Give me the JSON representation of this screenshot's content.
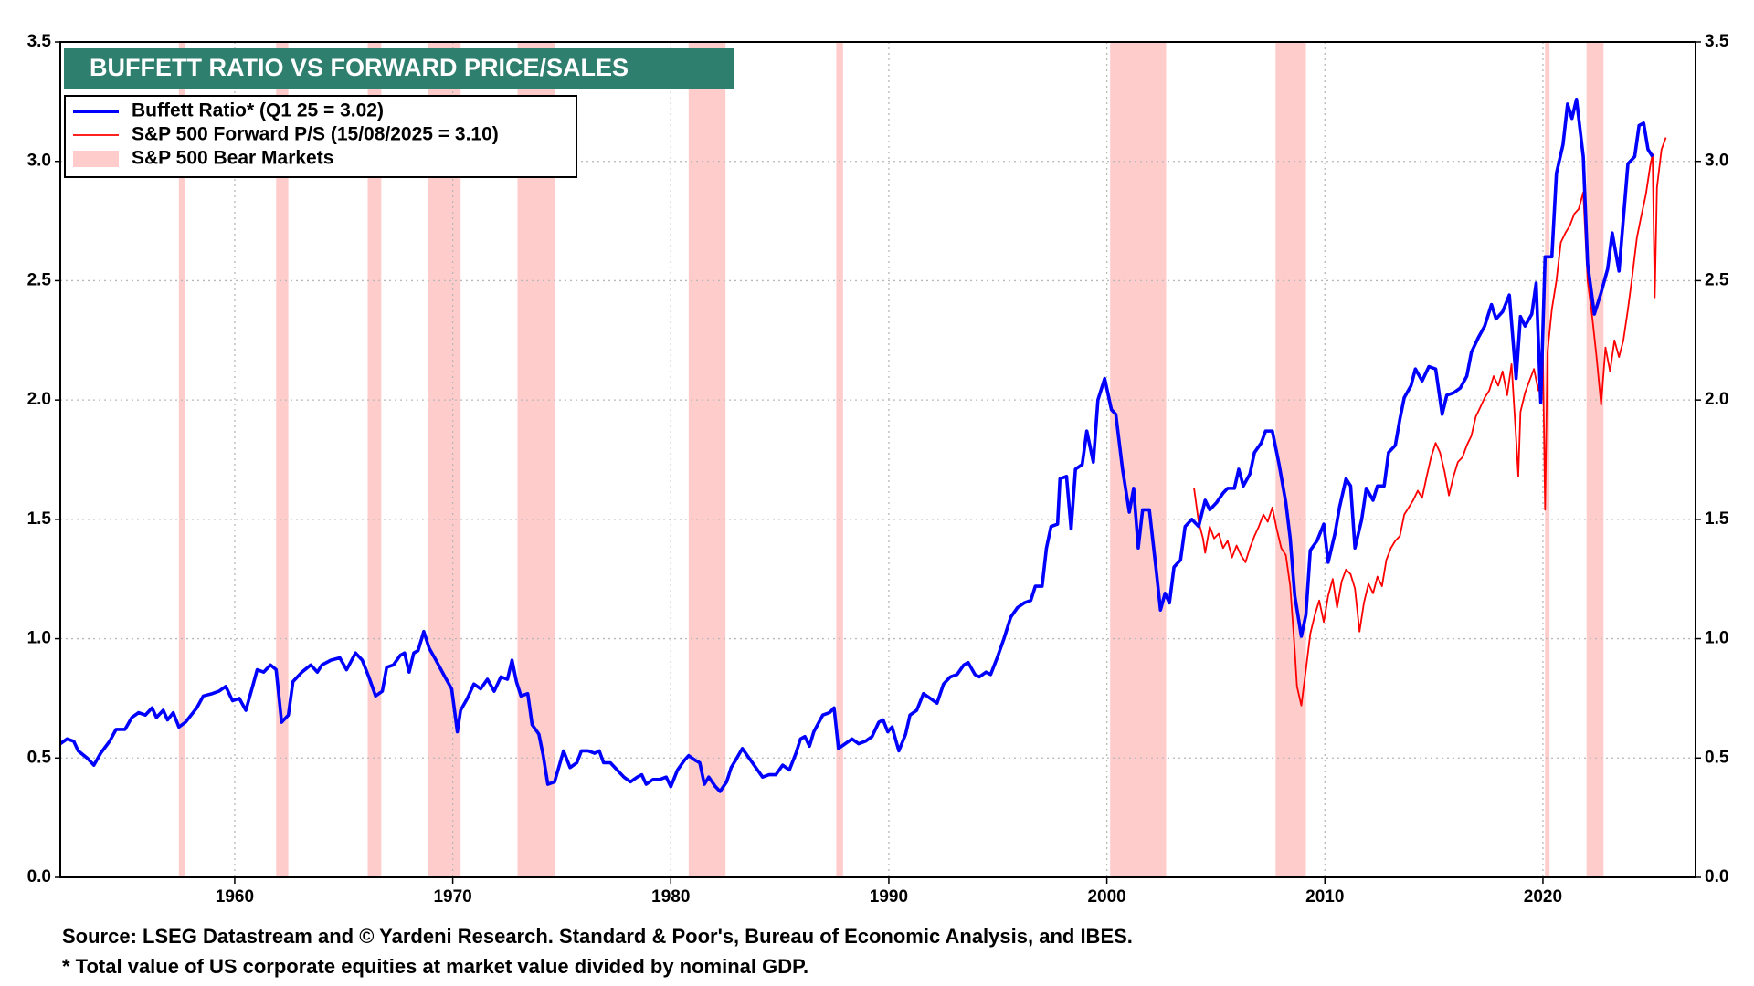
{
  "chart_data": {
    "type": "line",
    "title": "BUFFETT RATIO VS FORWARD PRICE/SALES",
    "source": "Source: LSEG Datastream and © Yardeni Research. Standard & Poor's, Bureau of Economic Analysis, and IBES.",
    "note": "* Total value of US corporate equities at market value divided by nominal GDP.",
    "legend": "upper left",
    "grid": true,
    "xlim": [
      1952,
      2027
    ],
    "xticks": [
      1960,
      1970,
      1980,
      1990,
      2000,
      2010,
      2020
    ],
    "ylim": [
      0,
      3.5
    ],
    "yticks": [
      {
        "value": 0,
        "label": "0.0"
      },
      {
        "value": 0.5,
        "label": "0.5"
      },
      {
        "value": 1,
        "label": "1.0"
      },
      {
        "value": 1.5,
        "label": "1.5"
      },
      {
        "value": 2,
        "label": "2.0"
      },
      {
        "value": 2.5,
        "label": "2.5"
      },
      {
        "value": 3,
        "label": "3.0"
      },
      {
        "value": 3.5,
        "label": "3.5"
      }
    ],
    "y2lim": [
      0,
      3.5
    ],
    "y2ticks": [
      {
        "value": 0,
        "label": "0.0"
      },
      {
        "value": 0.5,
        "label": "0.5"
      },
      {
        "value": 1,
        "label": "1.0"
      },
      {
        "value": 1.5,
        "label": "1.5"
      },
      {
        "value": 2,
        "label": "2.0"
      },
      {
        "value": 2.5,
        "label": "2.5"
      },
      {
        "value": 3,
        "label": "3.0"
      },
      {
        "value": 3.5,
        "label": "3.5"
      }
    ],
    "bear_markets": {
      "name": "S&P 500 Bear Markets",
      "color": "#ffcccc",
      "ranges": [
        [
          1957.44,
          1957.74
        ],
        [
          1961.9,
          1962.46
        ],
        [
          1966.1,
          1966.72
        ],
        [
          1968.87,
          1970.36
        ],
        [
          1972.97,
          1974.67
        ],
        [
          1980.82,
          1982.51
        ],
        [
          1987.59,
          1987.9
        ],
        [
          2000.15,
          2002.72
        ],
        [
          2007.74,
          2009.13
        ],
        [
          2020.1,
          2020.3
        ],
        [
          2022.0,
          2022.78
        ]
      ]
    },
    "series": [
      {
        "name": "Buffett Ratio* (Q1 25 = 3.02)",
        "color": "#0000ff",
        "x": [
          1952.0,
          1952.31,
          1952.62,
          1952.82,
          1953.23,
          1953.54,
          1953.85,
          1954.26,
          1954.56,
          1954.97,
          1955.28,
          1955.59,
          1955.9,
          1956.21,
          1956.41,
          1956.72,
          1956.92,
          1957.18,
          1957.44,
          1957.74,
          1958.26,
          1958.56,
          1958.97,
          1959.28,
          1959.59,
          1959.9,
          1960.21,
          1960.51,
          1960.82,
          1961.03,
          1961.33,
          1961.64,
          1961.9,
          1962.15,
          1962.46,
          1962.67,
          1963.08,
          1963.49,
          1963.79,
          1964.0,
          1964.41,
          1964.82,
          1965.13,
          1965.54,
          1965.85,
          1966.15,
          1966.46,
          1966.77,
          1966.97,
          1967.28,
          1967.59,
          1967.79,
          1968.0,
          1968.21,
          1968.41,
          1968.67,
          1968.92,
          1969.23,
          1969.64,
          1969.95,
          1970.21,
          1970.36,
          1970.67,
          1970.97,
          1971.28,
          1971.59,
          1971.9,
          1972.21,
          1972.51,
          1972.72,
          1972.92,
          1973.13,
          1973.44,
          1973.64,
          1973.95,
          1974.15,
          1974.36,
          1974.67,
          1975.08,
          1975.38,
          1975.69,
          1975.9,
          1976.21,
          1976.51,
          1976.72,
          1976.92,
          1977.23,
          1977.54,
          1977.85,
          1978.15,
          1978.46,
          1978.67,
          1978.87,
          1979.18,
          1979.49,
          1979.79,
          1980.0,
          1980.31,
          1980.62,
          1980.82,
          1981.13,
          1981.33,
          1981.54,
          1981.74,
          1982.05,
          1982.26,
          1982.56,
          1982.77,
          1982.97,
          1983.28,
          1983.59,
          1983.9,
          1984.21,
          1984.51,
          1984.82,
          1985.13,
          1985.44,
          1985.74,
          1985.95,
          1986.15,
          1986.36,
          1986.56,
          1986.97,
          1987.28,
          1987.49,
          1987.69,
          1988.0,
          1988.31,
          1988.62,
          1988.92,
          1989.23,
          1989.54,
          1989.74,
          1989.95,
          1990.15,
          1990.46,
          1990.77,
          1990.97,
          1991.28,
          1991.59,
          1991.9,
          1992.21,
          1992.51,
          1992.82,
          1993.13,
          1993.44,
          1993.64,
          1993.95,
          1994.15,
          1994.46,
          1994.67,
          1994.97,
          1995.28,
          1995.59,
          1995.9,
          1996.21,
          1996.51,
          1996.72,
          1997.03,
          1997.23,
          1997.44,
          1997.74,
          1997.85,
          1998.15,
          1998.36,
          1998.56,
          1998.87,
          1999.08,
          1999.38,
          1999.59,
          1999.9,
          2000.21,
          2000.41,
          2000.72,
          2001.03,
          2001.23,
          2001.44,
          2001.64,
          2001.95,
          2002.26,
          2002.46,
          2002.67,
          2002.87,
          2003.08,
          2003.38,
          2003.59,
          2003.9,
          2004.21,
          2004.51,
          2004.72,
          2005.03,
          2005.33,
          2005.54,
          2005.85,
          2006.05,
          2006.26,
          2006.56,
          2006.77,
          2007.08,
          2007.28,
          2007.59,
          2007.9,
          2008.21,
          2008.41,
          2008.62,
          2008.92,
          2009.13,
          2009.33,
          2009.64,
          2009.95,
          2010.15,
          2010.46,
          2010.67,
          2010.97,
          2011.18,
          2011.38,
          2011.69,
          2011.9,
          2012.21,
          2012.41,
          2012.72,
          2012.92,
          2013.23,
          2013.44,
          2013.64,
          2013.95,
          2014.15,
          2014.46,
          2014.77,
          2015.08,
          2015.38,
          2015.59,
          2015.9,
          2016.21,
          2016.51,
          2016.72,
          2017.03,
          2017.33,
          2017.64,
          2017.85,
          2018.15,
          2018.46,
          2018.77,
          2018.97,
          2019.18,
          2019.49,
          2019.69,
          2019.9,
          2020.1,
          2020.41,
          2020.62,
          2020.92,
          2021.13,
          2021.33,
          2021.54,
          2021.85,
          2022.05,
          2022.36,
          2022.67,
          2022.97,
          2023.18,
          2023.49,
          2023.69,
          2023.9,
          2024.21,
          2024.41,
          2024.62,
          2024.82,
          2025.03
        ],
        "values": [
          0.56,
          0.58,
          0.57,
          0.53,
          0.5,
          0.47,
          0.52,
          0.57,
          0.62,
          0.62,
          0.67,
          0.69,
          0.68,
          0.71,
          0.67,
          0.7,
          0.66,
          0.69,
          0.63,
          0.65,
          0.71,
          0.76,
          0.77,
          0.78,
          0.8,
          0.74,
          0.75,
          0.7,
          0.8,
          0.87,
          0.86,
          0.89,
          0.87,
          0.65,
          0.68,
          0.82,
          0.86,
          0.89,
          0.86,
          0.89,
          0.91,
          0.92,
          0.87,
          0.94,
          0.91,
          0.84,
          0.76,
          0.78,
          0.88,
          0.89,
          0.93,
          0.94,
          0.86,
          0.94,
          0.95,
          1.03,
          0.96,
          0.91,
          0.84,
          0.79,
          0.61,
          0.7,
          0.75,
          0.81,
          0.79,
          0.83,
          0.78,
          0.84,
          0.83,
          0.91,
          0.82,
          0.76,
          0.77,
          0.64,
          0.6,
          0.51,
          0.39,
          0.4,
          0.53,
          0.46,
          0.48,
          0.53,
          0.53,
          0.52,
          0.53,
          0.48,
          0.48,
          0.45,
          0.42,
          0.4,
          0.42,
          0.43,
          0.39,
          0.41,
          0.41,
          0.42,
          0.38,
          0.45,
          0.49,
          0.51,
          0.49,
          0.48,
          0.39,
          0.42,
          0.38,
          0.36,
          0.4,
          0.46,
          0.49,
          0.54,
          0.5,
          0.46,
          0.42,
          0.43,
          0.43,
          0.47,
          0.45,
          0.52,
          0.58,
          0.59,
          0.55,
          0.61,
          0.68,
          0.69,
          0.71,
          0.54,
          0.56,
          0.58,
          0.56,
          0.57,
          0.59,
          0.65,
          0.66,
          0.61,
          0.63,
          0.53,
          0.6,
          0.68,
          0.7,
          0.77,
          0.75,
          0.73,
          0.81,
          0.84,
          0.85,
          0.89,
          0.9,
          0.85,
          0.84,
          0.86,
          0.85,
          0.92,
          1.0,
          1.09,
          1.13,
          1.15,
          1.16,
          1.22,
          1.22,
          1.38,
          1.47,
          1.48,
          1.67,
          1.68,
          1.46,
          1.71,
          1.73,
          1.87,
          1.74,
          2.0,
          2.09,
          1.96,
          1.94,
          1.71,
          1.53,
          1.63,
          1.38,
          1.54,
          1.54,
          1.29,
          1.12,
          1.19,
          1.15,
          1.3,
          1.33,
          1.47,
          1.5,
          1.47,
          1.58,
          1.54,
          1.57,
          1.61,
          1.63,
          1.63,
          1.71,
          1.64,
          1.69,
          1.78,
          1.82,
          1.87,
          1.87,
          1.73,
          1.57,
          1.42,
          1.18,
          1.01,
          1.1,
          1.37,
          1.41,
          1.48,
          1.32,
          1.44,
          1.55,
          1.67,
          1.64,
          1.38,
          1.5,
          1.63,
          1.58,
          1.64,
          1.64,
          1.78,
          1.81,
          1.92,
          2.01,
          2.06,
          2.13,
          2.08,
          2.14,
          2.13,
          1.94,
          2.02,
          2.03,
          2.05,
          2.1,
          2.2,
          2.26,
          2.31,
          2.4,
          2.34,
          2.37,
          2.44,
          2.09,
          2.35,
          2.31,
          2.36,
          2.49,
          1.99,
          2.6,
          2.6,
          2.95,
          3.07,
          3.24,
          3.18,
          3.26,
          3.02,
          2.57,
          2.36,
          2.45,
          2.55,
          2.7,
          2.54,
          2.76,
          2.99,
          3.02,
          3.15,
          3.16,
          3.05,
          3.02
        ]
      },
      {
        "name": "S&P 500 Forward P/S (15/08/2025 = 3.10)",
        "color": "#ff0000",
        "x": [
          2004.0,
          2004.21,
          2004.41,
          2004.51,
          2004.72,
          2004.92,
          2005.13,
          2005.33,
          2005.54,
          2005.74,
          2005.95,
          2006.15,
          2006.36,
          2006.56,
          2006.77,
          2006.97,
          2007.18,
          2007.38,
          2007.59,
          2007.79,
          2008.0,
          2008.21,
          2008.41,
          2008.62,
          2008.72,
          2008.92,
          2009.13,
          2009.33,
          2009.54,
          2009.74,
          2009.95,
          2010.15,
          2010.36,
          2010.56,
          2010.77,
          2010.97,
          2011.18,
          2011.38,
          2011.59,
          2011.79,
          2012.0,
          2012.21,
          2012.41,
          2012.62,
          2012.82,
          2013.03,
          2013.23,
          2013.44,
          2013.64,
          2013.85,
          2014.05,
          2014.26,
          2014.46,
          2014.67,
          2014.87,
          2015.08,
          2015.28,
          2015.49,
          2015.69,
          2015.9,
          2016.1,
          2016.31,
          2016.51,
          2016.72,
          2016.92,
          2017.13,
          2017.33,
          2017.54,
          2017.74,
          2017.95,
          2018.15,
          2018.36,
          2018.56,
          2018.77,
          2018.87,
          2018.97,
          2019.18,
          2019.38,
          2019.59,
          2019.79,
          2020.0,
          2020.1,
          2020.21,
          2020.41,
          2020.62,
          2020.82,
          2021.03,
          2021.23,
          2021.44,
          2021.64,
          2021.85,
          2022.05,
          2022.26,
          2022.46,
          2022.67,
          2022.87,
          2023.08,
          2023.28,
          2023.49,
          2023.69,
          2023.9,
          2024.1,
          2024.31,
          2024.51,
          2024.72,
          2024.92,
          2025.03,
          2025.13,
          2025.23,
          2025.44,
          2025.64
        ],
        "values": [
          1.63,
          1.49,
          1.42,
          1.36,
          1.47,
          1.42,
          1.44,
          1.38,
          1.41,
          1.34,
          1.39,
          1.35,
          1.32,
          1.38,
          1.43,
          1.47,
          1.52,
          1.49,
          1.55,
          1.46,
          1.38,
          1.35,
          1.22,
          0.95,
          0.8,
          0.72,
          0.87,
          1.02,
          1.1,
          1.16,
          1.07,
          1.18,
          1.25,
          1.13,
          1.24,
          1.29,
          1.27,
          1.21,
          1.03,
          1.15,
          1.23,
          1.19,
          1.26,
          1.22,
          1.33,
          1.38,
          1.41,
          1.43,
          1.52,
          1.55,
          1.58,
          1.62,
          1.59,
          1.68,
          1.76,
          1.82,
          1.78,
          1.7,
          1.6,
          1.68,
          1.74,
          1.76,
          1.81,
          1.85,
          1.93,
          1.97,
          2.01,
          2.04,
          2.1,
          2.06,
          2.12,
          2.02,
          2.15,
          1.84,
          1.68,
          1.95,
          2.03,
          2.08,
          2.13,
          2.04,
          2.2,
          1.54,
          2.2,
          2.38,
          2.5,
          2.66,
          2.7,
          2.73,
          2.78,
          2.8,
          2.87,
          2.5,
          2.35,
          2.18,
          1.98,
          2.22,
          2.12,
          2.25,
          2.18,
          2.25,
          2.38,
          2.52,
          2.68,
          2.77,
          2.86,
          2.98,
          3.03,
          2.43,
          2.89,
          3.05,
          3.1
        ]
      }
    ]
  }
}
